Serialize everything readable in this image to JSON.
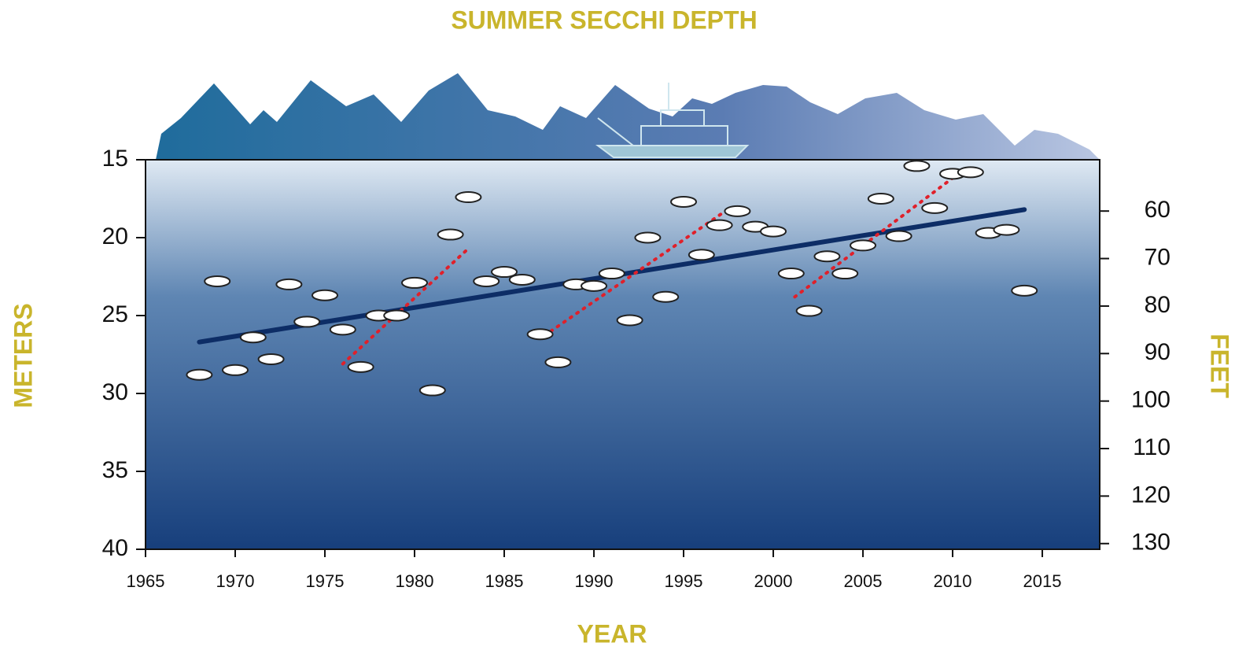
{
  "chart_data": {
    "type": "scatter",
    "title": "SUMMER SECCHI DEPTH",
    "xlabel": "YEAR",
    "ylabel": "METERS",
    "y2label": "FEET",
    "x": [
      1968,
      1969,
      1970,
      1971,
      1972,
      1973,
      1974,
      1975,
      1976,
      1977,
      1978,
      1979,
      1980,
      1981,
      1982,
      1983,
      1984,
      1985,
      1986,
      1987,
      1988,
      1989,
      1990,
      1991,
      1992,
      1993,
      1994,
      1995,
      1996,
      1997,
      1998,
      1999,
      2000,
      2001,
      2002,
      2003,
      2004,
      2005,
      2006,
      2007,
      2008,
      2009,
      2010,
      2011,
      2012,
      2013,
      2014
    ],
    "series": [
      {
        "color": "#ffffff",
        "values": [
          28.8,
          22.8,
          28.5,
          26.4,
          27.8,
          23.0,
          25.4,
          23.7,
          25.9,
          28.3,
          25.0,
          25.0,
          22.9,
          29.8,
          19.8,
          17.4,
          22.8,
          22.2,
          22.7,
          26.2,
          28.0,
          23.0,
          23.1,
          22.3,
          25.3,
          20.0,
          23.8,
          17.7,
          21.1,
          19.2,
          18.3,
          19.3,
          19.6,
          22.3,
          24.7,
          21.2,
          22.3,
          20.5,
          17.5,
          19.9,
          15.4,
          18.1,
          15.9,
          15.8,
          19.7,
          19.5,
          23.4
        ]
      }
    ],
    "trend_lines": [
      {
        "color": "#0d2d66",
        "style": "solid",
        "x": [
          1968,
          2014
        ],
        "values": [
          26.7,
          18.2
        ]
      },
      {
        "color": "#e0202a",
        "style": "dotted",
        "x": [
          1976,
          1983
        ],
        "values": [
          28.1,
          20.7
        ]
      },
      {
        "color": "#e0202a",
        "style": "dotted",
        "x": [
          1987.6,
          1997.7
        ],
        "values": [
          26.0,
          18.0
        ]
      },
      {
        "color": "#e0202a",
        "style": "dotted",
        "x": [
          2001.2,
          2010.2
        ],
        "values": [
          23.8,
          16.0
        ]
      }
    ],
    "xlim": [
      1965,
      2018.2
    ],
    "xticks": [
      1965,
      1970,
      1975,
      1980,
      1985,
      1990,
      1995,
      2000,
      2005,
      2010,
      2015
    ],
    "ylim": [
      15,
      40
    ],
    "yticks": [
      15,
      20,
      25,
      30,
      35,
      40
    ],
    "yinvert": true,
    "y2lim": [
      49.2,
      131.2
    ],
    "y2ticks": [
      60,
      70,
      80,
      90,
      100,
      110,
      120,
      130
    ]
  }
}
